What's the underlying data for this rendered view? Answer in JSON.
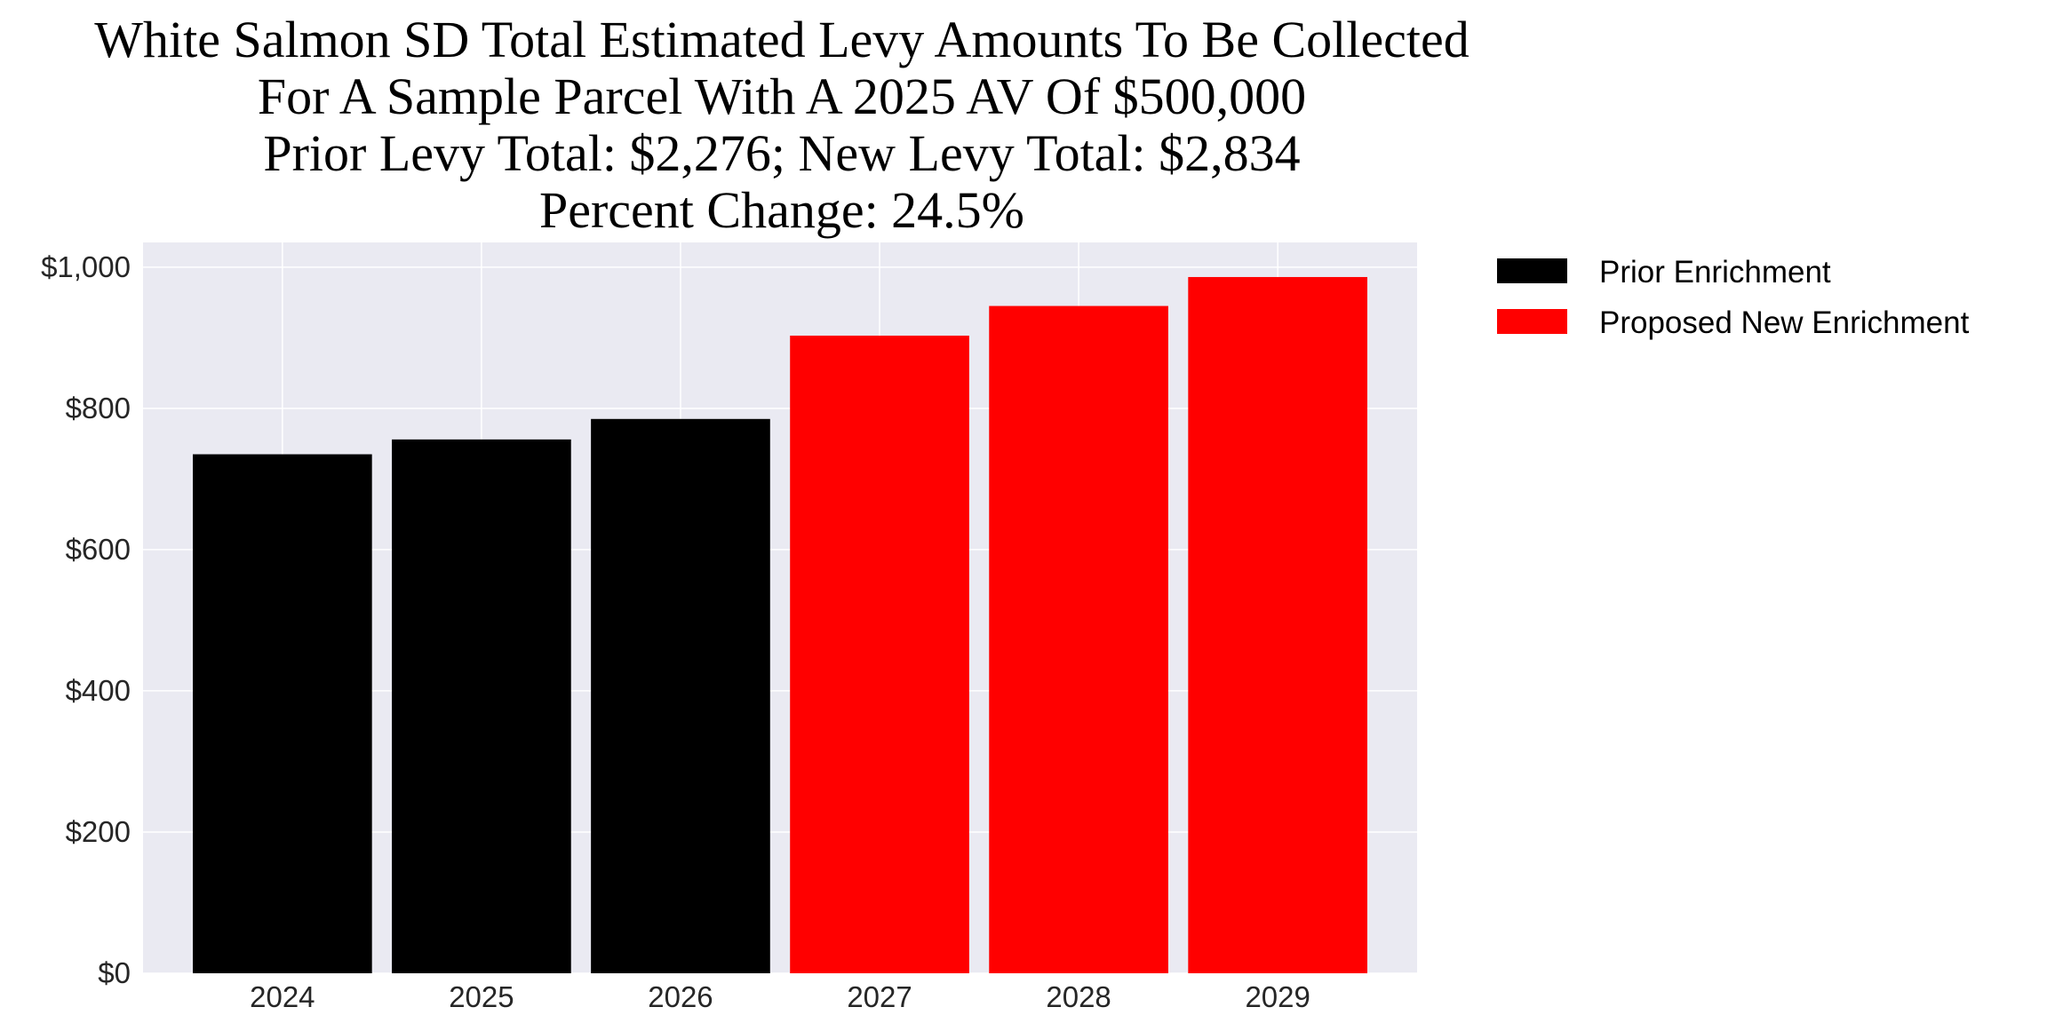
{
  "chart_data": {
    "type": "bar",
    "title_lines": [
      "White Salmon SD Total Estimated Levy Amounts To Be Collected",
      "For A Sample Parcel With A 2025 AV Of $500,000",
      "Prior Levy Total:  $2,276; New Levy Total: $2,834",
      "Percent Change: 24.5%"
    ],
    "xlabel": "",
    "ylabel": "",
    "categories": [
      "2024",
      "2025",
      "2026",
      "2027",
      "2028",
      "2029"
    ],
    "values": [
      735,
      756,
      785,
      903,
      945,
      986
    ],
    "bar_series": [
      "Prior Enrichment",
      "Prior Enrichment",
      "Prior Enrichment",
      "Proposed New Enrichment",
      "Proposed New Enrichment",
      "Proposed New Enrichment"
    ],
    "series": [
      {
        "name": "Prior Enrichment",
        "color": "#000000"
      },
      {
        "name": "Proposed New Enrichment",
        "color": "#ff0000"
      }
    ],
    "ylim": [
      0,
      1035
    ],
    "yticks": [
      0,
      200,
      400,
      600,
      800,
      1000
    ],
    "ytick_labels": [
      "$0",
      "$200",
      "$400",
      "$600",
      "$800",
      "$1,000"
    ],
    "grid": true,
    "background": "#eaeaf2",
    "legend_position": "outside-top-right"
  }
}
